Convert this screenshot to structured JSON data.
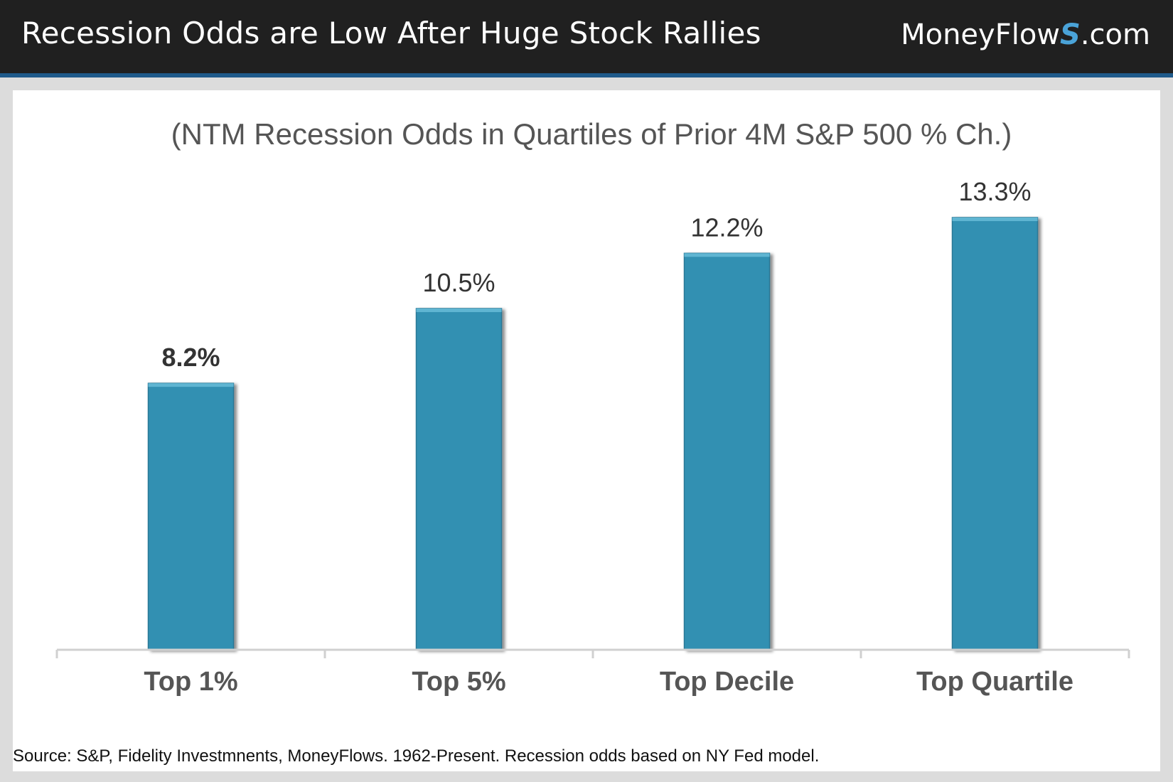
{
  "header": {
    "title": "Recession Odds are Low After Huge Stock Rallies",
    "brand_prefix": "MoneyFlow",
    "brand_s": "S",
    "brand_suffix": ".com"
  },
  "colors": {
    "bar": "#3390b2",
    "bar_top": "#5fb5d2",
    "header_bg": "#202020",
    "accent": "#1f5a8a"
  },
  "chart_data": {
    "type": "bar",
    "title": "(NTM Recession Odds in Quartiles of Prior 4M S&P 500 % Ch.)",
    "categories": [
      "Top 1%",
      "Top 5%",
      "Top Decile",
      "Top Quartile"
    ],
    "values": [
      8.2,
      10.5,
      12.2,
      13.3
    ],
    "value_labels": [
      "8.2%",
      "10.5%",
      "12.2%",
      "13.3%"
    ],
    "ylim": [
      0,
      13.3
    ],
    "xlabel": "",
    "ylabel": "",
    "grid": false
  },
  "footer": {
    "source": "Source: S&P, Fidelity Investmnents, MoneyFlows. 1962-Present. Recession odds based on NY Fed model."
  }
}
